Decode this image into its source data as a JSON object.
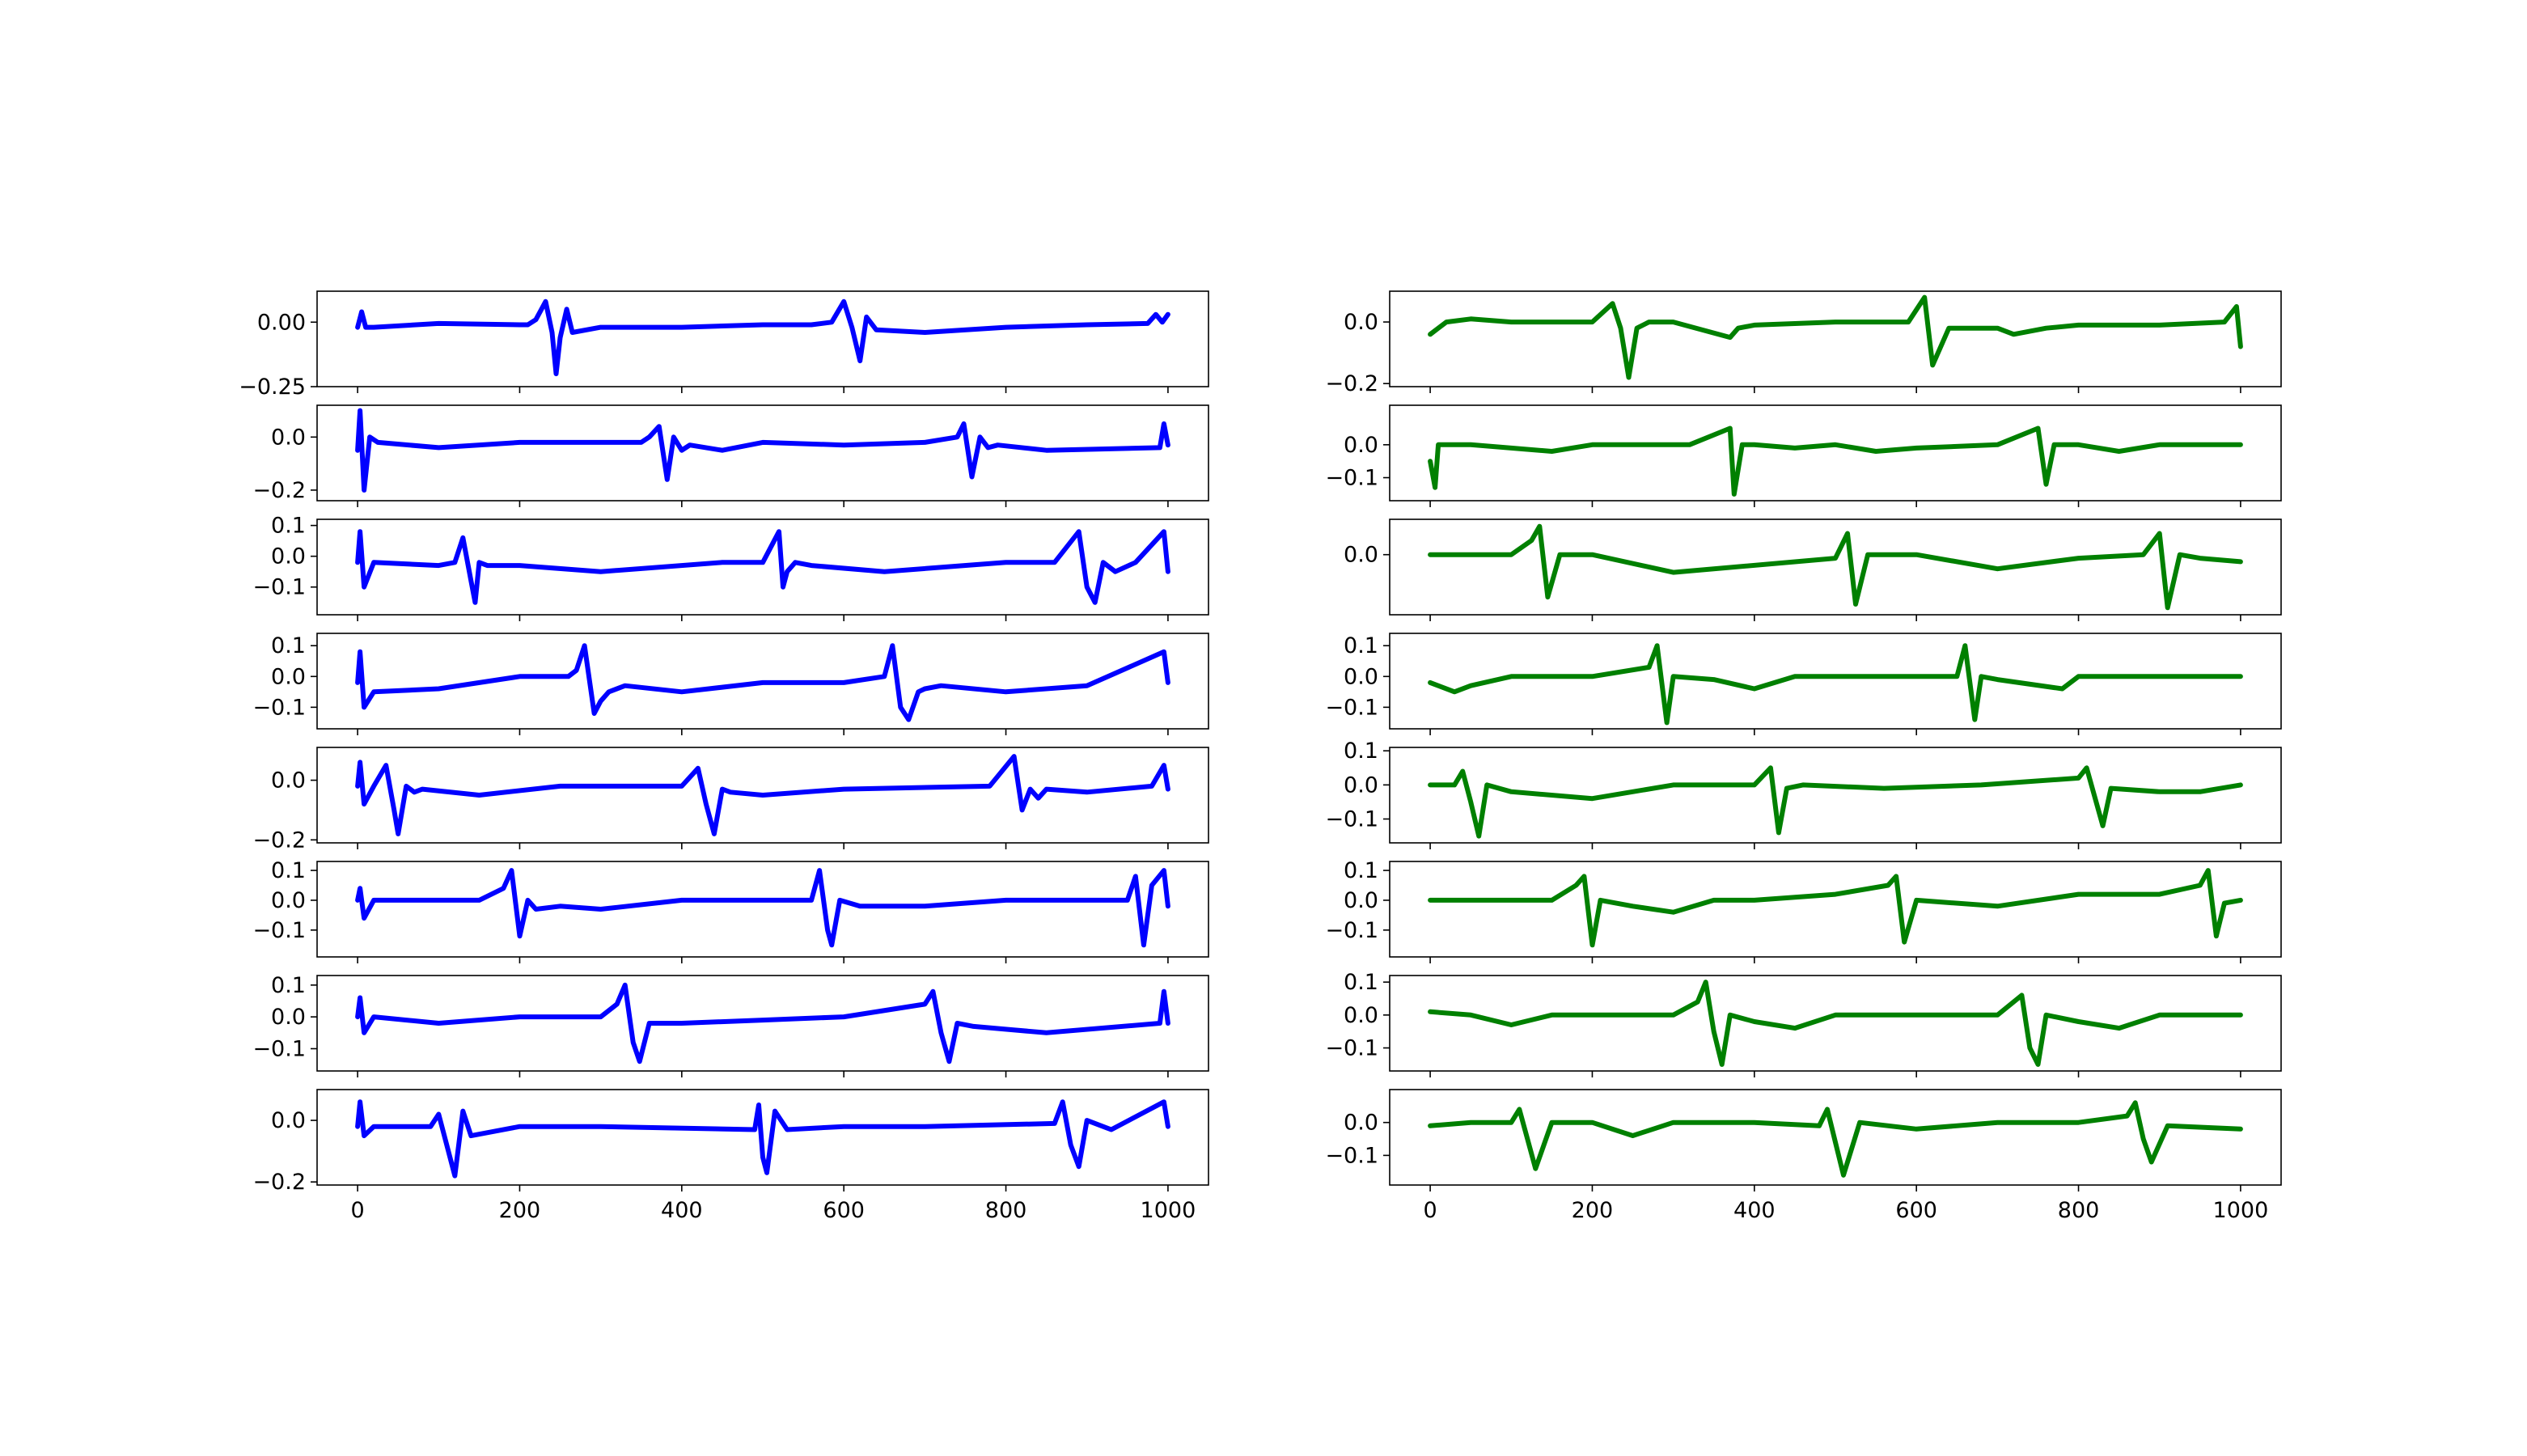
{
  "chart_data": [
    {
      "type": "line",
      "panel": "left-1",
      "color": "#0000ff",
      "ylim": [
        -0.25,
        0.12
      ],
      "yticks": [
        0.0,
        -0.25
      ],
      "ytick_labels": [
        "0.00",
        "−0.25"
      ],
      "xlim": [
        -50,
        1050
      ],
      "xticks": [
        0,
        200,
        400,
        600,
        800,
        1000
      ],
      "xtick_labels_visible": false,
      "x": [
        0,
        5,
        10,
        20,
        100,
        200,
        210,
        220,
        232,
        240,
        245,
        250,
        258,
        265,
        300,
        400,
        500,
        560,
        585,
        600,
        610,
        620,
        628,
        640,
        700,
        800,
        900,
        975,
        985,
        993,
        1000
      ],
      "y": [
        -0.02,
        0.04,
        -0.02,
        -0.02,
        -0.005,
        -0.01,
        -0.01,
        0.01,
        0.08,
        -0.04,
        -0.2,
        -0.06,
        0.05,
        -0.04,
        -0.02,
        -0.02,
        -0.01,
        -0.01,
        0.0,
        0.08,
        -0.02,
        -0.15,
        0.02,
        -0.03,
        -0.04,
        -0.02,
        -0.01,
        -0.005,
        0.03,
        0.0,
        0.03
      ]
    },
    {
      "type": "line",
      "panel": "left-2",
      "color": "#0000ff",
      "ylim": [
        -0.24,
        0.12
      ],
      "yticks": [
        0.0,
        -0.2
      ],
      "ytick_labels": [
        "0.0",
        "−0.2"
      ],
      "xlim": [
        -50,
        1050
      ],
      "xticks": [
        0,
        200,
        400,
        600,
        800,
        1000
      ],
      "xtick_labels_visible": false,
      "x": [
        0,
        3,
        8,
        15,
        25,
        100,
        200,
        300,
        350,
        360,
        372,
        382,
        390,
        400,
        410,
        450,
        500,
        600,
        700,
        740,
        748,
        758,
        768,
        778,
        790,
        850,
        990,
        995,
        1000
      ],
      "y": [
        -0.05,
        0.1,
        -0.2,
        0.0,
        -0.02,
        -0.04,
        -0.02,
        -0.02,
        -0.02,
        0.0,
        0.04,
        -0.16,
        0.0,
        -0.05,
        -0.03,
        -0.05,
        -0.02,
        -0.03,
        -0.02,
        0.0,
        0.05,
        -0.15,
        0.0,
        -0.04,
        -0.03,
        -0.05,
        -0.04,
        0.05,
        -0.03
      ]
    },
    {
      "type": "line",
      "panel": "left-3",
      "color": "#0000ff",
      "ylim": [
        -0.19,
        0.12
      ],
      "yticks": [
        0.1,
        0.0,
        -0.1
      ],
      "ytick_labels": [
        "0.1",
        "0.0",
        "−0.1"
      ],
      "xlim": [
        -50,
        1050
      ],
      "xticks": [
        0,
        200,
        400,
        600,
        800,
        1000
      ],
      "xtick_labels_visible": false,
      "x": [
        0,
        3,
        8,
        20,
        100,
        120,
        130,
        140,
        145,
        150,
        160,
        200,
        300,
        450,
        500,
        520,
        525,
        530,
        540,
        560,
        650,
        800,
        860,
        890,
        900,
        910,
        920,
        935,
        960,
        995,
        1000
      ],
      "y": [
        -0.02,
        0.08,
        -0.1,
        -0.02,
        -0.03,
        -0.02,
        0.06,
        -0.08,
        -0.15,
        -0.02,
        -0.03,
        -0.03,
        -0.05,
        -0.02,
        -0.02,
        0.08,
        -0.1,
        -0.05,
        -0.02,
        -0.03,
        -0.05,
        -0.02,
        -0.02,
        0.08,
        -0.1,
        -0.15,
        -0.02,
        -0.05,
        -0.02,
        0.08,
        -0.05
      ]
    },
    {
      "type": "line",
      "panel": "left-4",
      "color": "#0000ff",
      "ylim": [
        -0.17,
        0.14
      ],
      "yticks": [
        0.1,
        0.0,
        -0.1
      ],
      "ytick_labels": [
        "0.1",
        "0.0",
        "−0.1"
      ],
      "xlim": [
        -50,
        1050
      ],
      "xticks": [
        0,
        200,
        400,
        600,
        800,
        1000
      ],
      "xtick_labels_visible": false,
      "x": [
        0,
        3,
        8,
        20,
        100,
        200,
        260,
        270,
        280,
        292,
        300,
        310,
        330,
        400,
        500,
        600,
        650,
        660,
        670,
        680,
        692,
        700,
        720,
        800,
        900,
        995,
        1000
      ],
      "y": [
        -0.02,
        0.08,
        -0.1,
        -0.05,
        -0.04,
        0.0,
        0.0,
        0.02,
        0.1,
        -0.12,
        -0.08,
        -0.05,
        -0.03,
        -0.05,
        -0.02,
        -0.02,
        0.0,
        0.1,
        -0.1,
        -0.14,
        -0.05,
        -0.04,
        -0.03,
        -0.05,
        -0.03,
        0.08,
        -0.02
      ]
    },
    {
      "type": "line",
      "panel": "left-5",
      "color": "#0000ff",
      "ylim": [
        -0.21,
        0.11
      ],
      "yticks": [
        0.0,
        -0.2
      ],
      "ytick_labels": [
        "0.0",
        "−0.2"
      ],
      "xlim": [
        -50,
        1050
      ],
      "xticks": [
        0,
        200,
        400,
        600,
        800,
        1000
      ],
      "xtick_labels_visible": false,
      "x": [
        0,
        3,
        8,
        20,
        35,
        45,
        50,
        60,
        70,
        80,
        150,
        250,
        350,
        400,
        420,
        430,
        440,
        450,
        460,
        500,
        600,
        780,
        810,
        820,
        830,
        840,
        850,
        900,
        980,
        995,
        1000
      ],
      "y": [
        -0.02,
        0.06,
        -0.08,
        -0.02,
        0.05,
        -0.1,
        -0.18,
        -0.02,
        -0.04,
        -0.03,
        -0.05,
        -0.02,
        -0.02,
        -0.02,
        0.04,
        -0.08,
        -0.18,
        -0.03,
        -0.04,
        -0.05,
        -0.03,
        -0.02,
        0.08,
        -0.1,
        -0.03,
        -0.06,
        -0.03,
        -0.04,
        -0.02,
        0.05,
        -0.03
      ]
    },
    {
      "type": "line",
      "panel": "left-6",
      "color": "#0000ff",
      "ylim": [
        -0.19,
        0.13
      ],
      "yticks": [
        0.1,
        0.0,
        -0.1
      ],
      "ytick_labels": [
        "0.1",
        "0.0",
        "−0.1"
      ],
      "xlim": [
        -50,
        1050
      ],
      "xticks": [
        0,
        200,
        400,
        600,
        800,
        1000
      ],
      "xtick_labels_visible": false,
      "x": [
        0,
        3,
        8,
        20,
        100,
        150,
        180,
        190,
        200,
        210,
        220,
        250,
        300,
        400,
        500,
        560,
        570,
        580,
        585,
        595,
        620,
        700,
        800,
        900,
        950,
        960,
        970,
        980,
        995,
        1000
      ],
      "y": [
        0.0,
        0.04,
        -0.06,
        0.0,
        0.0,
        0.0,
        0.04,
        0.1,
        -0.12,
        0.0,
        -0.03,
        -0.02,
        -0.03,
        0.0,
        0.0,
        0.0,
        0.1,
        -0.1,
        -0.15,
        0.0,
        -0.02,
        -0.02,
        0.0,
        0.0,
        0.0,
        0.08,
        -0.15,
        0.05,
        0.1,
        -0.02
      ]
    },
    {
      "type": "line",
      "panel": "left-7",
      "color": "#0000ff",
      "ylim": [
        -0.17,
        0.13
      ],
      "yticks": [
        0.1,
        0.0,
        -0.1
      ],
      "ytick_labels": [
        "0.1",
        "0.0",
        "−0.1"
      ],
      "xlim": [
        -50,
        1050
      ],
      "xticks": [
        0,
        200,
        400,
        600,
        800,
        1000
      ],
      "xtick_labels_visible": false,
      "x": [
        0,
        3,
        8,
        20,
        100,
        200,
        300,
        320,
        330,
        340,
        348,
        360,
        400,
        500,
        600,
        700,
        710,
        720,
        730,
        740,
        760,
        850,
        990,
        995,
        1000
      ],
      "y": [
        0.0,
        0.06,
        -0.05,
        0.0,
        -0.02,
        0.0,
        0.0,
        0.04,
        0.1,
        -0.08,
        -0.14,
        -0.02,
        -0.02,
        -0.01,
        0.0,
        0.04,
        0.08,
        -0.05,
        -0.14,
        -0.02,
        -0.03,
        -0.05,
        -0.02,
        0.08,
        -0.02
      ]
    },
    {
      "type": "line",
      "panel": "left-8",
      "color": "#0000ff",
      "ylim": [
        -0.21,
        0.1
      ],
      "yticks": [
        0.0,
        -0.2
      ],
      "ytick_labels": [
        "0.0",
        "−0.2"
      ],
      "xlim": [
        -50,
        1050
      ],
      "xticks": [
        0,
        200,
        400,
        600,
        800,
        1000
      ],
      "xtick_labels_visible": false,
      "x": [
        0,
        3,
        8,
        20,
        90,
        100,
        110,
        120,
        130,
        140,
        200,
        300,
        490,
        495,
        500,
        505,
        515,
        530,
        600,
        700,
        860,
        870,
        880,
        890,
        900,
        930,
        995,
        1000
      ],
      "y": [
        -0.02,
        0.06,
        -0.05,
        -0.02,
        -0.02,
        0.02,
        -0.08,
        -0.18,
        0.03,
        -0.05,
        -0.02,
        -0.02,
        -0.03,
        0.05,
        -0.12,
        -0.17,
        0.03,
        -0.03,
        -0.02,
        -0.02,
        -0.01,
        0.06,
        -0.08,
        -0.15,
        0.0,
        -0.03,
        0.06,
        -0.02
      ]
    },
    {
      "type": "line",
      "panel": "right-1",
      "color": "#008000",
      "ylim": [
        -0.21,
        0.1
      ],
      "yticks": [
        0.0,
        -0.2
      ],
      "ytick_labels": [
        "0.0",
        "−0.2"
      ],
      "xlim": [
        -50,
        1050
      ],
      "xticks": [
        0,
        200,
        400,
        600,
        800,
        1000
      ],
      "xtick_labels_visible": false,
      "x": [
        0,
        20,
        50,
        100,
        150,
        200,
        225,
        235,
        245,
        255,
        270,
        300,
        370,
        380,
        400,
        500,
        590,
        610,
        620,
        640,
        700,
        720,
        760,
        800,
        900,
        980,
        995,
        1000
      ],
      "y": [
        -0.04,
        0.0,
        0.01,
        0.0,
        0.0,
        0.0,
        0.06,
        -0.02,
        -0.18,
        -0.02,
        0.0,
        0.0,
        -0.05,
        -0.02,
        -0.01,
        0.0,
        0.0,
        0.08,
        -0.14,
        -0.02,
        -0.02,
        -0.04,
        -0.02,
        -0.01,
        -0.01,
        0.0,
        0.05,
        -0.08
      ]
    },
    {
      "type": "line",
      "panel": "right-2",
      "color": "#008000",
      "ylim": [
        -0.17,
        0.12
      ],
      "yticks": [
        0.0,
        -0.1
      ],
      "ytick_labels": [
        "0.0",
        "−0.1"
      ],
      "xlim": [
        -50,
        1050
      ],
      "xticks": [
        0,
        200,
        400,
        600,
        800,
        1000
      ],
      "xtick_labels_visible": false,
      "x": [
        0,
        6,
        10,
        20,
        50,
        100,
        150,
        200,
        300,
        320,
        370,
        375,
        385,
        400,
        450,
        500,
        550,
        600,
        700,
        750,
        760,
        770,
        800,
        850,
        900,
        950,
        1000
      ],
      "y": [
        -0.05,
        -0.13,
        0.0,
        0.0,
        0.0,
        -0.01,
        -0.02,
        0.0,
        0.0,
        0.0,
        0.05,
        -0.15,
        0.0,
        0.0,
        -0.01,
        0.0,
        -0.02,
        -0.01,
        0.0,
        0.05,
        -0.12,
        0.0,
        0.0,
        -0.02,
        0.0,
        0.0,
        0.0
      ]
    },
    {
      "type": "line",
      "panel": "right-3",
      "color": "#008000",
      "ylim": [
        -0.17,
        0.1
      ],
      "yticks": [
        0.0
      ],
      "ytick_labels": [
        "0.0"
      ],
      "xlim": [
        -50,
        1050
      ],
      "xticks": [
        0,
        200,
        400,
        600,
        800,
        1000
      ],
      "xtick_labels_visible": false,
      "x": [
        0,
        50,
        100,
        125,
        135,
        145,
        160,
        200,
        300,
        500,
        515,
        525,
        540,
        600,
        700,
        800,
        880,
        900,
        910,
        925,
        950,
        1000
      ],
      "y": [
        0.0,
        0.0,
        0.0,
        0.04,
        0.08,
        -0.12,
        0.0,
        0.0,
        -0.05,
        -0.01,
        0.06,
        -0.14,
        0.0,
        0.0,
        -0.04,
        -0.01,
        0.0,
        0.06,
        -0.15,
        0.0,
        -0.01,
        -0.02
      ]
    },
    {
      "type": "line",
      "panel": "right-4",
      "color": "#008000",
      "ylim": [
        -0.17,
        0.14
      ],
      "yticks": [
        0.1,
        0.0,
        -0.1
      ],
      "ytick_labels": [
        "0.1",
        "0.0",
        "−0.1"
      ],
      "xlim": [
        -50,
        1050
      ],
      "xticks": [
        0,
        200,
        400,
        600,
        800,
        1000
      ],
      "xtick_labels_visible": false,
      "x": [
        0,
        30,
        50,
        100,
        200,
        270,
        280,
        292,
        300,
        350,
        400,
        450,
        560,
        650,
        660,
        672,
        680,
        700,
        780,
        800,
        900,
        950,
        1000
      ],
      "y": [
        -0.02,
        -0.05,
        -0.03,
        0.0,
        0.0,
        0.03,
        0.1,
        -0.15,
        0.0,
        -0.01,
        -0.04,
        0.0,
        0.0,
        0.0,
        0.1,
        -0.14,
        0.0,
        -0.01,
        -0.04,
        0.0,
        0.0,
        0.0,
        0.0
      ]
    },
    {
      "type": "line",
      "panel": "right-5",
      "color": "#008000",
      "ylim": [
        -0.17,
        0.11
      ],
      "yticks": [
        0.1,
        0.0,
        -0.1
      ],
      "ytick_labels": [
        "0.1",
        "0.0",
        "−0.1"
      ],
      "xlim": [
        -50,
        1050
      ],
      "xticks": [
        0,
        200,
        400,
        600,
        800,
        1000
      ],
      "xtick_labels_visible": false,
      "x": [
        0,
        30,
        40,
        50,
        60,
        70,
        100,
        200,
        300,
        400,
        420,
        430,
        440,
        460,
        560,
        680,
        800,
        810,
        830,
        840,
        900,
        950,
        1000
      ],
      "y": [
        0.0,
        0.0,
        0.04,
        -0.05,
        -0.15,
        0.0,
        -0.02,
        -0.04,
        0.0,
        0.0,
        0.05,
        -0.14,
        -0.01,
        0.0,
        -0.01,
        0.0,
        0.02,
        0.05,
        -0.12,
        -0.01,
        -0.02,
        -0.02,
        0.0
      ]
    },
    {
      "type": "line",
      "panel": "right-6",
      "color": "#008000",
      "ylim": [
        -0.19,
        0.13
      ],
      "yticks": [
        0.1,
        0.0,
        -0.1
      ],
      "ytick_labels": [
        "0.1",
        "0.0",
        "−0.1"
      ],
      "xlim": [
        -50,
        1050
      ],
      "xticks": [
        0,
        200,
        400,
        600,
        800,
        1000
      ],
      "xtick_labels_visible": false,
      "x": [
        0,
        50,
        100,
        150,
        180,
        190,
        200,
        210,
        250,
        300,
        350,
        400,
        500,
        565,
        575,
        585,
        600,
        700,
        800,
        900,
        950,
        960,
        970,
        980,
        1000
      ],
      "y": [
        0.0,
        0.0,
        0.0,
        0.0,
        0.05,
        0.08,
        -0.15,
        0.0,
        -0.02,
        -0.04,
        0.0,
        0.0,
        0.02,
        0.05,
        0.08,
        -0.14,
        0.0,
        -0.02,
        0.02,
        0.02,
        0.05,
        0.1,
        -0.12,
        -0.01,
        0.0
      ]
    },
    {
      "type": "line",
      "panel": "right-7",
      "color": "#008000",
      "ylim": [
        -0.17,
        0.12
      ],
      "yticks": [
        0.1,
        0.0,
        -0.1
      ],
      "ytick_labels": [
        "0.1",
        "0.0",
        "−0.1"
      ],
      "xlim": [
        -50,
        1050
      ],
      "xticks": [
        0,
        200,
        400,
        600,
        800,
        1000
      ],
      "xtick_labels_visible": false,
      "x": [
        0,
        50,
        100,
        150,
        200,
        300,
        330,
        340,
        350,
        360,
        370,
        400,
        450,
        500,
        600,
        700,
        720,
        730,
        740,
        750,
        760,
        800,
        850,
        900,
        1000
      ],
      "y": [
        0.01,
        0.0,
        -0.03,
        0.0,
        0.0,
        0.0,
        0.04,
        0.1,
        -0.05,
        -0.15,
        0.0,
        -0.02,
        -0.04,
        0.0,
        0.0,
        0.0,
        0.04,
        0.06,
        -0.1,
        -0.15,
        0.0,
        -0.02,
        -0.04,
        0.0,
        0.0
      ]
    },
    {
      "type": "line",
      "panel": "right-8",
      "color": "#008000",
      "ylim": [
        -0.19,
        0.1
      ],
      "yticks": [
        0.0,
        -0.1
      ],
      "ytick_labels": [
        "0.0",
        "−0.1"
      ],
      "xlim": [
        -50,
        1050
      ],
      "xticks": [
        0,
        200,
        400,
        600,
        800,
        1000
      ],
      "xtick_labels_visible": false,
      "x": [
        0,
        50,
        100,
        110,
        120,
        130,
        150,
        200,
        250,
        300,
        400,
        480,
        490,
        500,
        510,
        530,
        600,
        700,
        800,
        860,
        870,
        880,
        890,
        910,
        1000
      ],
      "y": [
        -0.01,
        0.0,
        0.0,
        0.04,
        -0.05,
        -0.14,
        0.0,
        0.0,
        -0.04,
        0.0,
        0.0,
        -0.01,
        0.04,
        -0.06,
        -0.16,
        0.0,
        -0.02,
        0.0,
        0.0,
        0.02,
        0.06,
        -0.05,
        -0.12,
        -0.01,
        -0.02
      ]
    }
  ],
  "bottom_xtick_labels": [
    "0",
    "200",
    "400",
    "600",
    "800",
    "1000"
  ]
}
